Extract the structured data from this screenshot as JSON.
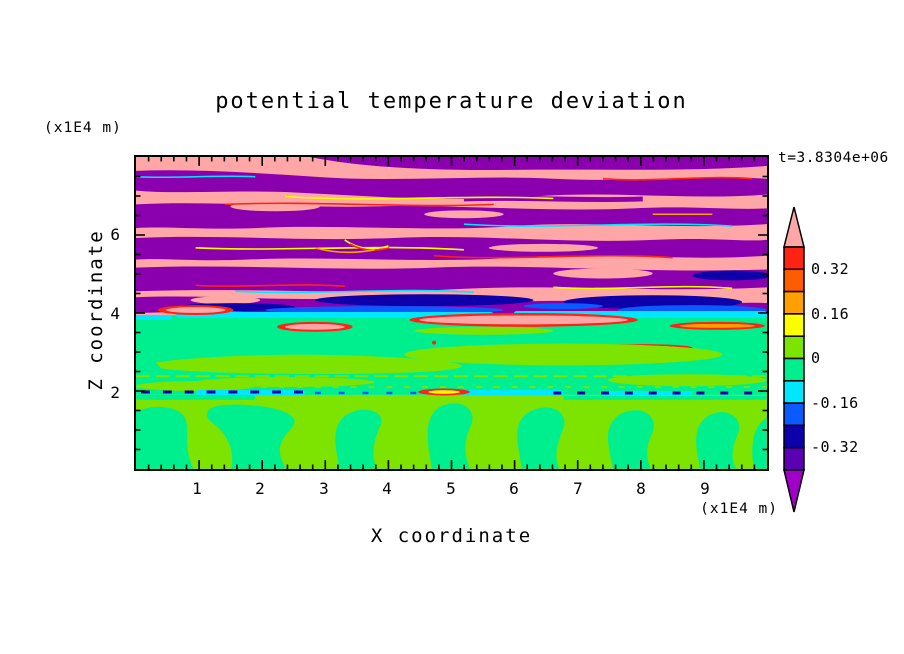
{
  "chart_data": {
    "type": "heatmap",
    "title": "potential temperature deviation",
    "timestamp": "t=3.8304e+06",
    "xlabel": "X coordinate",
    "ylabel": "Z coordinate",
    "x_axis_unit": "(x1E4 m)",
    "y_axis_unit": "(x1E4 m)",
    "xlim": [
      0,
      10
    ],
    "ylim": [
      0,
      8
    ],
    "x_tick_labels": [
      "1",
      "2",
      "3",
      "4",
      "5",
      "6",
      "7",
      "8",
      "9"
    ],
    "y_tick_labels": [
      "6",
      "4",
      "2"
    ],
    "x_minor_divisions": 50,
    "y_minor_divisions": 16,
    "grid": false,
    "legend_position": "right-colorbar",
    "colorbar": {
      "tick_labels": [
        "0.32",
        "0.16",
        "0",
        "-0.16",
        "-0.32"
      ],
      "levels_top_to_bottom": [
        0.4,
        0.32,
        0.24,
        0.16,
        0.08,
        0,
        -0.08,
        -0.16,
        -0.24,
        -0.32,
        -0.4
      ],
      "cell_colors_top_to_bottom": [
        "#ff2314",
        "#ff5b00",
        "#ffa000",
        "#fdff00",
        "#7ce400",
        "#00ef8e",
        "#00e8ff",
        "#0a5aff",
        "#0d00aa",
        "#5c00b4"
      ],
      "over_color": "#ffa6a6",
      "under_color": "#a000c8"
    },
    "palette": {
      "pink": "#ffa6a6",
      "band_purple": "#8a00ae",
      "navy": "#0d00aa",
      "blue": "#0a5aff",
      "cyan": "#00e8ff",
      "spring": "#00ef8e",
      "chartreuse": "#7ce400",
      "yellow": "#fdff00",
      "orange": "#ffa000",
      "red": "#ff2314",
      "axis": "#000000"
    },
    "field_description": {
      "upper_region_z4_to_8": "alternating wavy horizontal bands of pink (value > 0.4) and purple (value < -0.4) gravity-wave perturbations with thin red/orange/yellow/cyan contour fringes at band edges",
      "interface_z38_to_41": "dark-blue, blue and cyan negative-anomaly streaks capping the mixed layer",
      "middle_region_z2_to_4": "near-zero field: spring-green background with elongated chartreuse streaks and sparse red/pink warm filaments",
      "z2_line": "thin dashed layer of navy/blue/cyan with one red-orange hot streak at x≈4.9",
      "bottom_region_z0_to_2": "convective plumes: spring-green thermals rising through chartreuse background"
    }
  }
}
